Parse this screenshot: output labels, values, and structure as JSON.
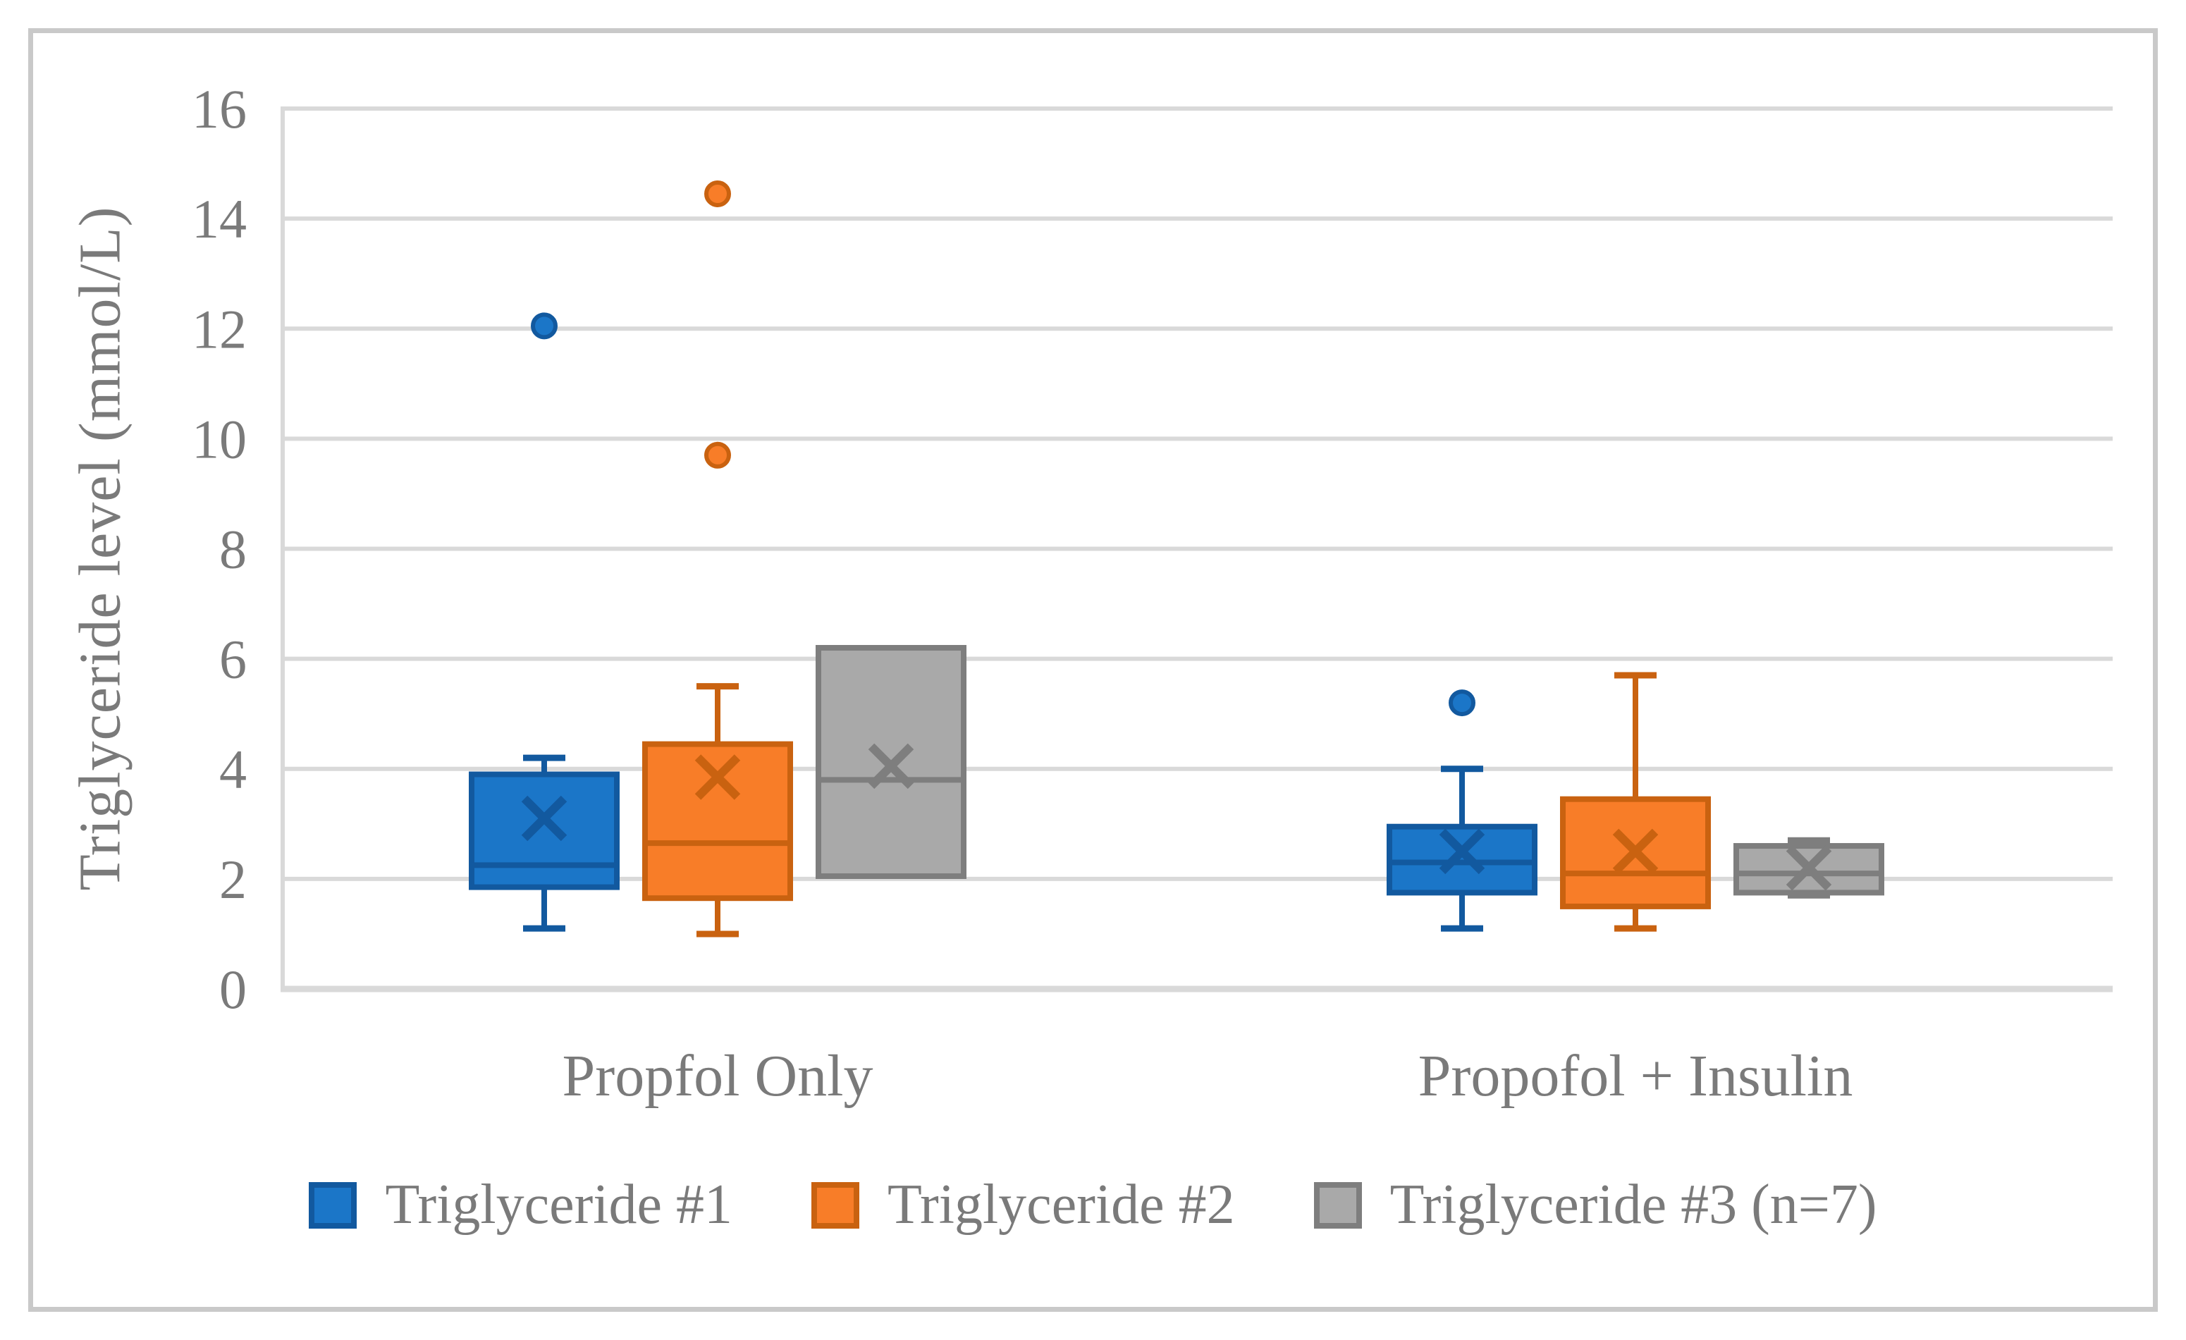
{
  "chart_data": {
    "type": "box",
    "title": "",
    "ylabel": "Triglyceride level (mmol/L)",
    "xlabel": "",
    "ylim": [
      0,
      16
    ],
    "yticks": [
      0,
      2,
      4,
      6,
      8,
      10,
      12,
      14,
      16
    ],
    "grid": true,
    "legend_position": "bottom",
    "categories": [
      "Propfol Only",
      "Propofol + Insulin"
    ],
    "series": [
      {
        "name": "Triglyceride #1",
        "fill": "#1b76c8",
        "stroke": "#12599f",
        "boxes": [
          {
            "min": 1.1,
            "q1": 1.85,
            "median": 2.25,
            "q3": 3.9,
            "max": 4.2,
            "mean": 3.1,
            "outliers": [
              12.05
            ]
          },
          {
            "min": 1.1,
            "q1": 1.75,
            "median": 2.3,
            "q3": 2.95,
            "max": 4.0,
            "mean": 2.5,
            "outliers": [
              5.2
            ]
          }
        ]
      },
      {
        "name": "Triglyceride #2",
        "fill": "#f87d28",
        "stroke": "#c96210",
        "boxes": [
          {
            "min": 1.0,
            "q1": 1.65,
            "median": 2.65,
            "q3": 4.45,
            "max": 5.5,
            "mean": 3.85,
            "outliers": [
              14.45,
              9.7
            ]
          },
          {
            "min": 1.1,
            "q1": 1.5,
            "median": 2.1,
            "q3": 3.45,
            "max": 5.7,
            "mean": 2.5,
            "outliers": []
          }
        ]
      },
      {
        "name": "Triglyceride #3 (n=7)",
        "fill": "#a9a9a9",
        "stroke": "#7e7e7e",
        "boxes": [
          {
            "min": null,
            "q1": 2.05,
            "median": 3.8,
            "q3": 6.2,
            "max": null,
            "mean": 4.05,
            "outliers": []
          },
          {
            "min": 1.7,
            "q1": 1.75,
            "median": 2.1,
            "q3": 2.6,
            "max": 2.7,
            "mean": 2.2,
            "outliers": []
          }
        ]
      }
    ],
    "style": {
      "text_color": "#7a7a7a",
      "gridline_color": "#d9d9d9",
      "frame_color": "#c9c9c9",
      "background": "#ffffff"
    }
  }
}
